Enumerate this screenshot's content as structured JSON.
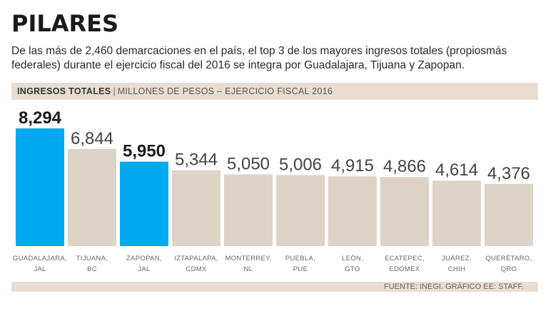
{
  "title": "PILARES",
  "subtitle": "De las más de 2,460 demarcaciones en el país, el top 3 de los mayores ingresos totales (propiosmás federales) durante el ejercicio fiscal del 2016 se integra por Guadalajara, Tijuana y Zapopan.",
  "header": {
    "label": "INGRESOS TOTALES",
    "separator": "|",
    "sublabel": "MILLONES DE PESOS – EJERCICIO FISCAL 2016"
  },
  "source": "FUENTE: INEGI. GRÁFICO EE: STAFF.",
  "colors": {
    "highlight": "#00a9f0",
    "default": "#ddd3c7",
    "band": "#e9ddd1"
  },
  "chart_data": {
    "type": "bar",
    "title": "INGRESOS TOTALES",
    "ylabel": "MILLONES DE PESOS – EJERCICIO FISCAL 2016",
    "ylim": [
      0,
      8294
    ],
    "grid": false,
    "categories": [
      [
        "GUADALAJARA,",
        "JAL"
      ],
      [
        "TIJUANA,",
        "BC"
      ],
      [
        "ZAPOPAN,",
        "JAL"
      ],
      [
        "IZTAPALAPA,",
        "CDMX"
      ],
      [
        "MONTERREY,",
        "NL"
      ],
      [
        "PUEBLA,",
        "PUE"
      ],
      [
        "LEÓN,",
        "GTO"
      ],
      [
        "ECATEPEC,",
        "EDOMEX"
      ],
      [
        "JUÁREZ,",
        "CHIH"
      ],
      [
        "QUERÉTARO,",
        "QRO"
      ]
    ],
    "values": [
      8294,
      6844,
      5950,
      5344,
      5050,
      5006,
      4915,
      4866,
      4614,
      4376
    ],
    "value_labels": [
      "8,294",
      "6,844",
      "5,950",
      "5,344",
      "5,050",
      "5,006",
      "4,915",
      "4,866",
      "4,614",
      "4,376"
    ],
    "highlighted": [
      true,
      false,
      true,
      false,
      false,
      false,
      false,
      false,
      false,
      false
    ]
  }
}
